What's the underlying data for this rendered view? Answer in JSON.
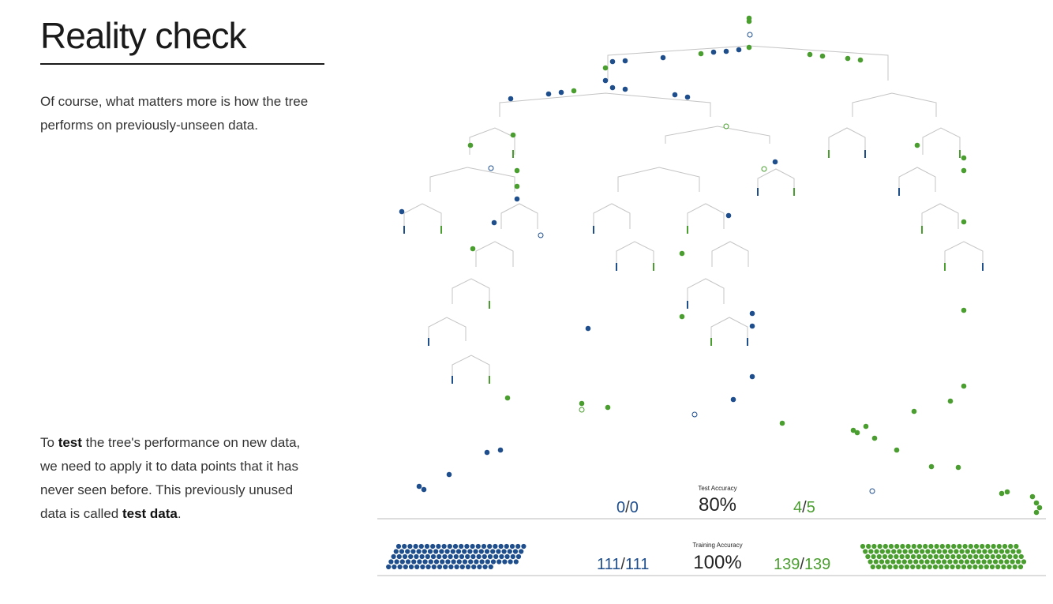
{
  "heading": "Reality check",
  "paragraph1": "Of course, what matters more is how the tree performs on previously-unseen data.",
  "paragraph2": {
    "t1": "To ",
    "b1": "test",
    "t2": " the tree's performance on new data, we need to apply it to data points that it has never seen before. This previously unused data is called ",
    "b2": "test data",
    "t3": "."
  },
  "test_accuracy": {
    "label": "Test Accuracy",
    "value": "80%",
    "blue": {
      "correct": "0",
      "total": "0"
    },
    "green": {
      "correct": "4",
      "total": "5"
    }
  },
  "training_accuracy": {
    "label": "Training Accuracy",
    "value": "100%",
    "blue": {
      "correct": "111",
      "total": "111"
    },
    "green": {
      "correct": "139",
      "total": "139"
    }
  },
  "colors": {
    "blue": "#1f4e8c",
    "green": "#4a9e2f",
    "branch": "#c4c4c4",
    "rule": "#bbbbbb"
  }
}
